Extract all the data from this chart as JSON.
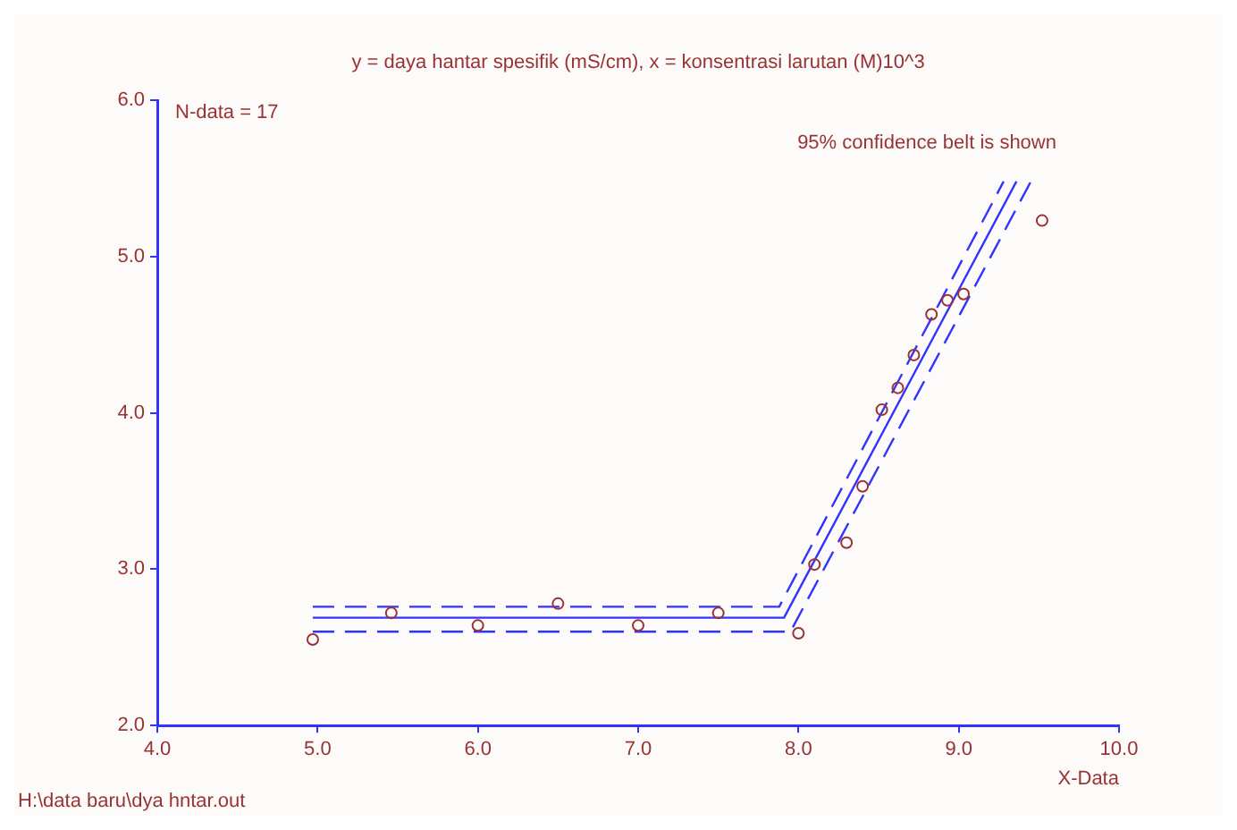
{
  "chart_data": {
    "type": "scatter",
    "title": "y = daya hantar spesifik (mS/cm), x = konsentrasi larutan (M)10^3",
    "xlabel": "X-Data",
    "annotations": [
      "N-data = 17",
      "95% confidence belt is shown",
      "H:\\data baru\\dya hntar.out"
    ],
    "series": [
      {
        "color": "#993333",
        "marker": "circle",
        "x": [
          4.97,
          5.46,
          6.0,
          6.5,
          7.0,
          7.5,
          8.0,
          8.1,
          8.3,
          8.4,
          8.52,
          8.62,
          8.72,
          8.83,
          8.93,
          9.03,
          9.52
        ],
        "values": [
          2.55,
          2.72,
          2.64,
          2.78,
          2.64,
          2.72,
          2.59,
          3.03,
          3.17,
          3.53,
          4.02,
          4.16,
          4.37,
          4.63,
          4.72,
          4.76,
          5.23
        ]
      },
      {
        "type": "line",
        "color": "#3333ff",
        "marker": "none",
        "line_style": "solid",
        "x": [
          4.97,
          7.91,
          9.36
        ],
        "values": [
          2.69,
          2.69,
          5.48
        ]
      },
      {
        "type": "line",
        "color": "#3333ff",
        "marker": "none",
        "line_style": "dashed",
        "x": [
          4.97,
          7.88,
          9.28
        ],
        "values": [
          2.76,
          2.76,
          5.48
        ]
      },
      {
        "type": "line",
        "color": "#3333ff",
        "marker": "none",
        "line_style": "dashed",
        "x": [
          4.97,
          7.95,
          9.45
        ],
        "values": [
          2.6,
          2.6,
          5.48
        ]
      }
    ],
    "xlim": [
      4,
      10
    ],
    "xticks": [
      {
        "value": 4,
        "label": "4.0"
      },
      {
        "value": 5,
        "label": "5.0"
      },
      {
        "value": 6,
        "label": "6.0"
      },
      {
        "value": 7,
        "label": "7.0"
      },
      {
        "value": 8,
        "label": "8.0"
      },
      {
        "value": 9,
        "label": "9.0"
      },
      {
        "value": 10,
        "label": "10.0"
      }
    ],
    "ylim": [
      2,
      6
    ],
    "yticks": [
      {
        "value": 2,
        "label": "2.0"
      },
      {
        "value": 3,
        "label": "3.0"
      },
      {
        "value": 4,
        "label": "4.0"
      },
      {
        "value": 5,
        "label": "5.0"
      },
      {
        "value": 6,
        "label": "6.0"
      }
    ],
    "grid": false,
    "legend": false
  }
}
